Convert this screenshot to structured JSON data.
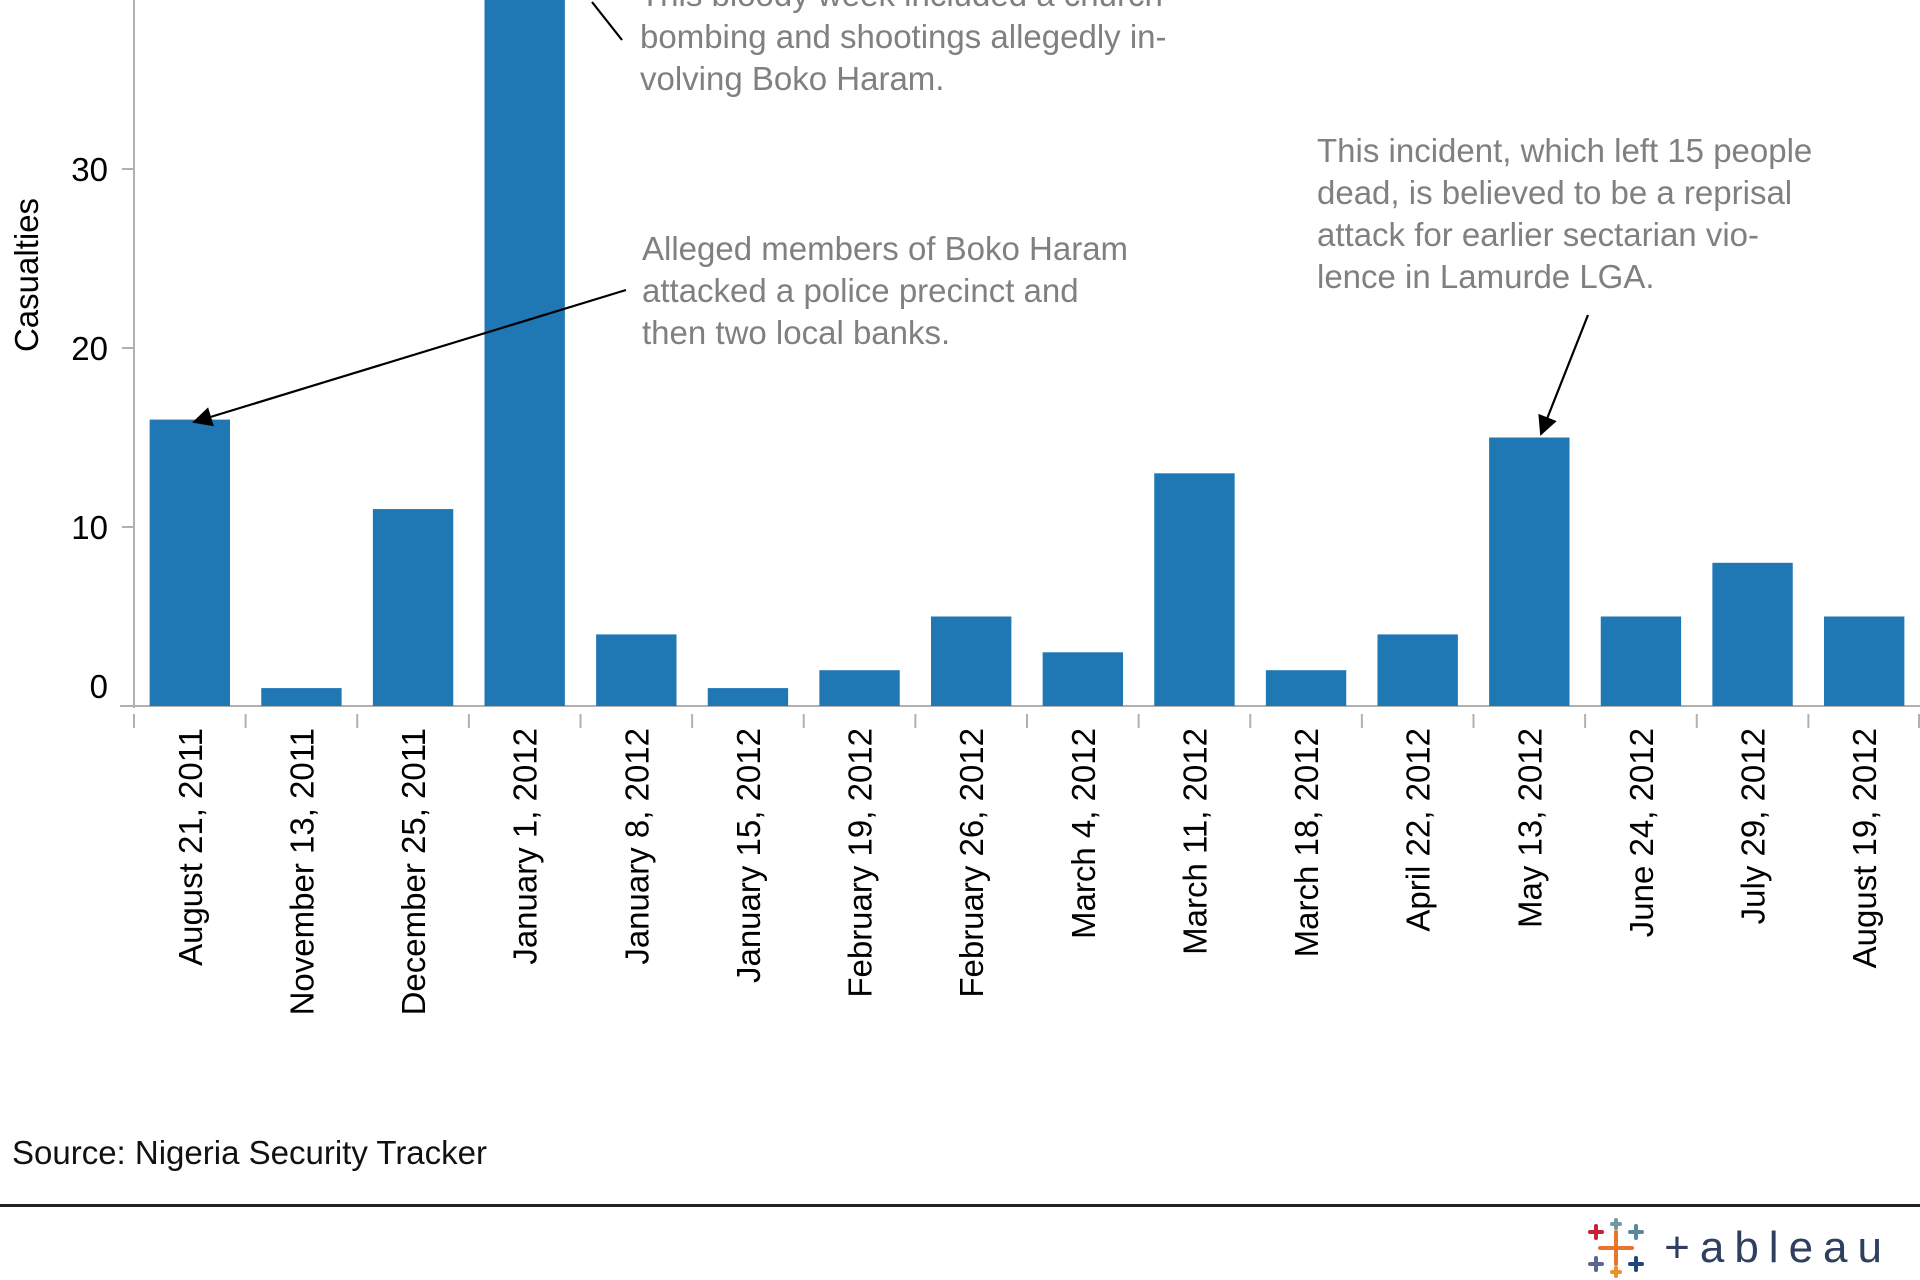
{
  "chart_data": {
    "type": "bar",
    "ylabel": "Casualties",
    "ylim": [
      0,
      40
    ],
    "yticks": [
      0,
      10,
      20,
      30
    ],
    "grid": false,
    "categories": [
      "August 21, 2011",
      "November 13, 2011",
      "December 25, 2011",
      "January 1, 2012",
      "January 8, 2012",
      "January 15, 2012",
      "February 19, 2012",
      "February 26, 2012",
      "March 4, 2012",
      "March 11, 2012",
      "March 18, 2012",
      "April 22, 2012",
      "May 13, 2012",
      "June 24, 2012",
      "July 29, 2012",
      "August 19, 2012"
    ],
    "values": [
      16,
      1,
      11,
      41,
      4,
      1,
      2,
      5,
      3,
      13,
      2,
      4,
      15,
      5,
      8,
      5
    ],
    "bar_color": "#1f77b4",
    "annotations": [
      {
        "target": "January 1, 2012",
        "lines": [
          "This bloody week included a church",
          "bombing and shootings allegedly in-",
          "volving Boko Haram."
        ]
      },
      {
        "target": "August 21, 2011",
        "lines": [
          "Alleged members of Boko Haram",
          "attacked a police precinct and",
          "then two local banks."
        ]
      },
      {
        "target": "May 13, 2012",
        "lines": [
          "This incident, which left 15 people",
          "dead, is believed to be a reprisal",
          "attack for earlier sectarian vio-",
          "lence in Lamurde LGA."
        ]
      }
    ]
  },
  "source": "Source: Nigeria Security Tracker",
  "brand": {
    "name": "+ableau"
  }
}
